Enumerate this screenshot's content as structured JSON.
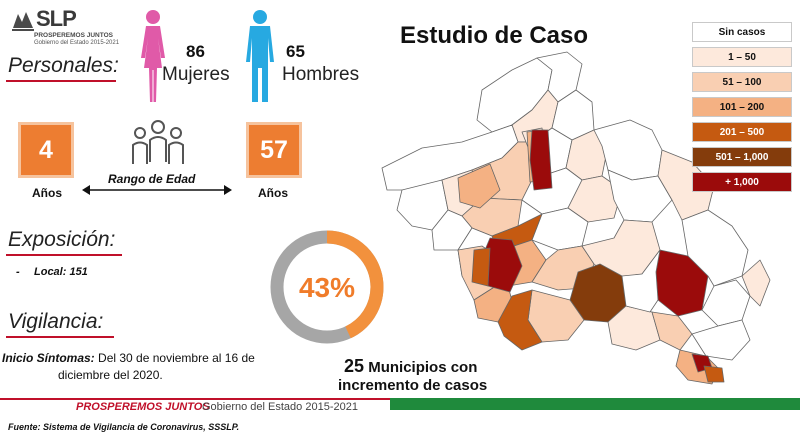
{
  "brand": {
    "logo_text": "SLP",
    "tagline": "PROSPEREMOS JUNTOS",
    "sub": "Gobierno del Estado 2015-2021"
  },
  "personales": {
    "title": "Personales:",
    "women": {
      "count": "86",
      "label": "Mujeres",
      "color": "#e05aa8",
      "icon": "female-figure-icon"
    },
    "men": {
      "count": "65",
      "label": "Hombres",
      "color": "#27a9e1",
      "icon": "male-figure-icon"
    }
  },
  "age": {
    "min": "4",
    "max": "57",
    "unit": "Años",
    "range_label": "Rango de Edad",
    "box_color": "#ed7d31",
    "icon": "group-people-icon"
  },
  "exposicion": {
    "title": "Exposición:",
    "items": [
      {
        "dash": "-",
        "label": "Local: 151"
      }
    ]
  },
  "vigilancia": {
    "title": "Vigilancia:",
    "onset_label": "Inicio Síntomas:",
    "onset_line1": "Del 30 de noviembre al 16 de",
    "onset_line2": "diciembre del 2020."
  },
  "donut": {
    "label": "43%",
    "percent": 43,
    "fill_color": "#f2913d",
    "track_color": "#a6a6a6"
  },
  "map": {
    "title": "Estudio de Caso",
    "highlight_count": "25",
    "highlight_line1": "Municipios con",
    "highlight_line2": "incremento de casos"
  },
  "legend": [
    {
      "label": "Sin casos",
      "color": "#ffffff",
      "text_color": "#111111"
    },
    {
      "label": "1 – 50",
      "color": "#fde9dc",
      "text_color": "#111111"
    },
    {
      "label": "51 – 100",
      "color": "#f9cfb2",
      "text_color": "#111111"
    },
    {
      "label": "101 – 200",
      "color": "#f4b183",
      "text_color": "#111111"
    },
    {
      "label": "201 – 500",
      "color": "#c55a11",
      "text_color": "#ffffff"
    },
    {
      "label": "501 – 1,000",
      "color": "#843c0c",
      "text_color": "#ffffff"
    },
    {
      "label": "+ 1,000",
      "color": "#9b0b0b",
      "text_color": "#ffffff"
    }
  ],
  "footer": {
    "left": "PROSPEREMOS JUNTOS",
    "right": "Gobierno del Estado 2015-2021",
    "source": "Fuente: Sistema de Vigilancia de Coronavirus, SSSLP."
  }
}
